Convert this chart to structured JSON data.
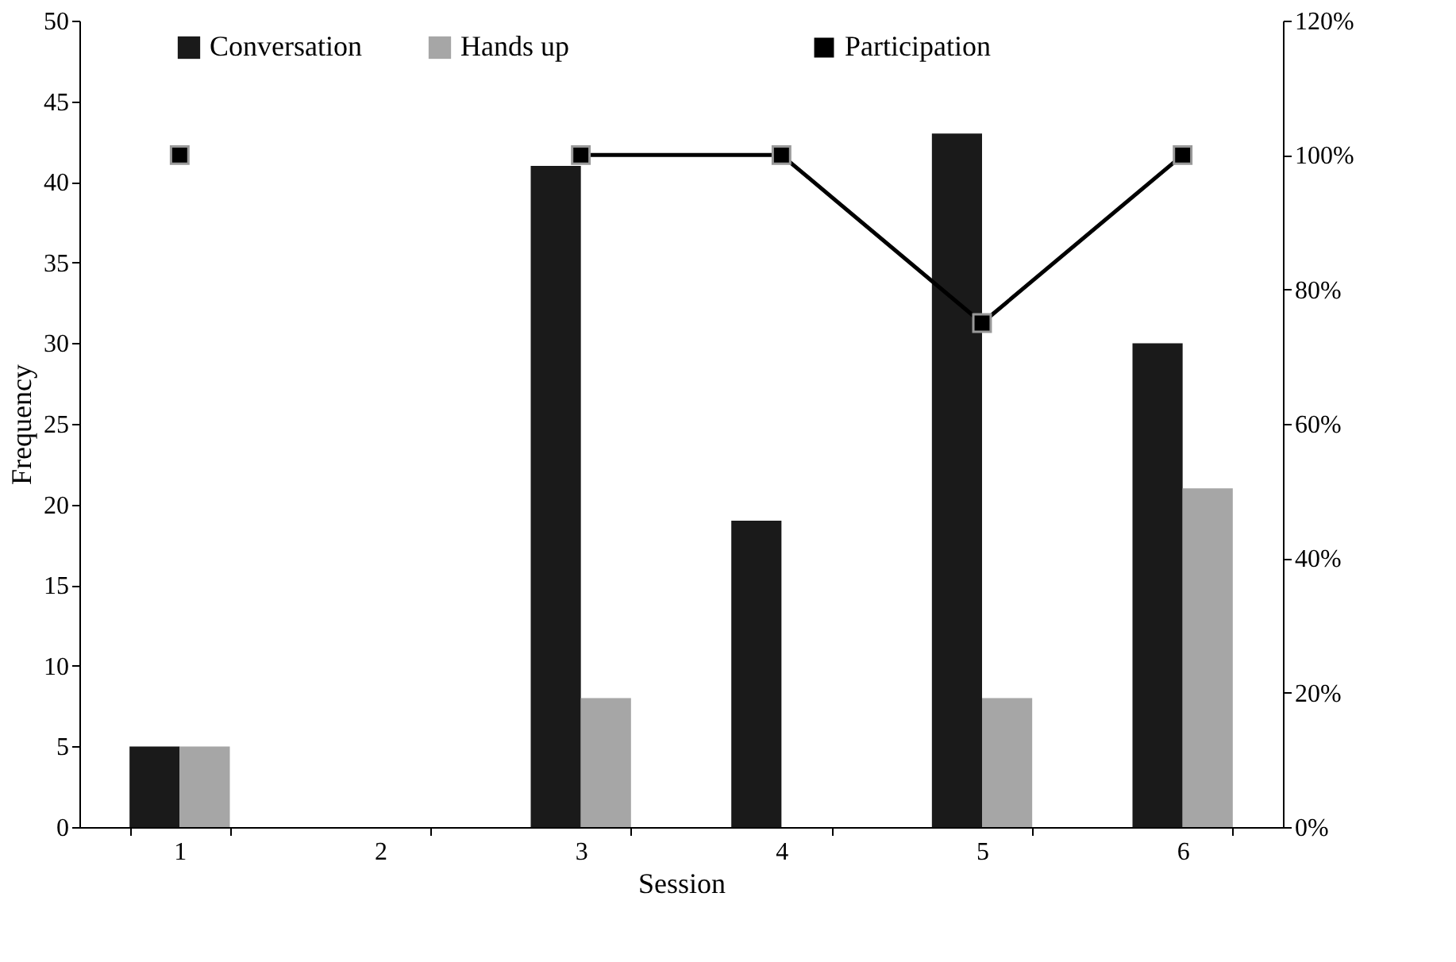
{
  "chart_data": {
    "type": "bar",
    "xlabel": "Session",
    "ylabel": "Frequency",
    "categories": [
      "1",
      "2",
      "3",
      "4",
      "5",
      "6"
    ],
    "series": [
      {
        "name": "Conversation",
        "color": "#1a1a1a",
        "values": [
          5,
          null,
          41,
          19,
          43,
          30
        ]
      },
      {
        "name": "Hands up",
        "color": "#a6a6a6",
        "values": [
          5,
          null,
          8,
          null,
          8,
          21
        ]
      },
      {
        "name": "Participation",
        "type": "line",
        "axis": "y2",
        "color": "#000000",
        "marker": "square",
        "values": [
          100,
          null,
          100,
          100,
          75,
          100
        ]
      }
    ],
    "ylim": [
      0,
      50
    ],
    "yticks": [
      0,
      5,
      10,
      15,
      20,
      25,
      30,
      35,
      40,
      45,
      50
    ],
    "y2lim": [
      0,
      120
    ],
    "y2ticks": [
      {
        "value": 0,
        "label": "0%"
      },
      {
        "value": 20,
        "label": "20%"
      },
      {
        "value": 40,
        "label": "40%"
      },
      {
        "value": 60,
        "label": "60%"
      },
      {
        "value": 80,
        "label": "80%"
      },
      {
        "value": 100,
        "label": "100%"
      },
      {
        "value": 120,
        "label": "120%"
      }
    ],
    "legend": "top",
    "grid": false,
    "line_style": "solid"
  }
}
